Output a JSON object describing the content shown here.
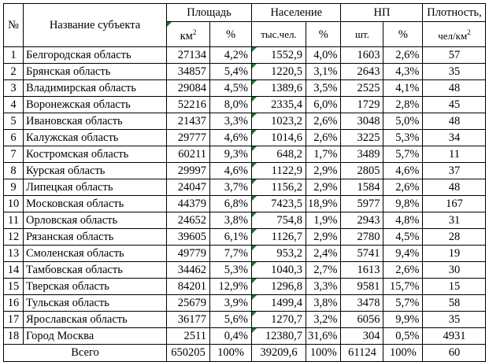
{
  "header": {
    "num": "№",
    "name": "Название субъекта",
    "area": "Площадь",
    "population": "Население",
    "np": "НП",
    "density": "Плотность,",
    "area_unit": "км",
    "area_unit_sup": "2",
    "pct": "%",
    "pop_unit": "тыс.чел.",
    "np_unit": "шт.",
    "density_unit": "чел/км",
    "density_unit_sup": "2"
  },
  "rows": [
    {
      "n": "1",
      "name": "Белгородская область",
      "area": "27134",
      "area_pct": "4,2%",
      "pop": "1552,9",
      "pop_pct": "4,0%",
      "np": "1603",
      "np_pct": "2,6%",
      "dens": "57"
    },
    {
      "n": "2",
      "name": "Брянская область",
      "area": "34857",
      "area_pct": "5,4%",
      "pop": "1220,5",
      "pop_pct": "3,1%",
      "np": "2643",
      "np_pct": "4,3%",
      "dens": "35"
    },
    {
      "n": "3",
      "name": "Владимирская область",
      "area": "29084",
      "area_pct": "4,5%",
      "pop": "1389,6",
      "pop_pct": "3,5%",
      "np": "2525",
      "np_pct": "4,1%",
      "dens": "48"
    },
    {
      "n": "4",
      "name": "Воронежская область",
      "area": "52216",
      "area_pct": "8,0%",
      "pop": "2335,4",
      "pop_pct": "6,0%",
      "np": "1729",
      "np_pct": "2,8%",
      "dens": "45"
    },
    {
      "n": "5",
      "name": "Ивановская область",
      "area": "21437",
      "area_pct": "3,3%",
      "pop": "1023,2",
      "pop_pct": "2,6%",
      "np": "3048",
      "np_pct": "5,0%",
      "dens": "48"
    },
    {
      "n": "6",
      "name": "Калужская область",
      "area": "29777",
      "area_pct": "4,6%",
      "pop": "1014,6",
      "pop_pct": "2,6%",
      "np": "3225",
      "np_pct": "5,3%",
      "dens": "34"
    },
    {
      "n": "7",
      "name": "Костромская область",
      "area": "60211",
      "area_pct": "9,3%",
      "pop": "648,2",
      "pop_pct": "1,7%",
      "np": "3489",
      "np_pct": "5,7%",
      "dens": "11"
    },
    {
      "n": "8",
      "name": "Курская область",
      "area": "29997",
      "area_pct": "4,6%",
      "pop": "1122,9",
      "pop_pct": "2,9%",
      "np": "2805",
      "np_pct": "4,6%",
      "dens": "37"
    },
    {
      "n": "9",
      "name": "Липецкая область",
      "area": "24047",
      "area_pct": "3,7%",
      "pop": "1156,2",
      "pop_pct": "2,9%",
      "np": "1584",
      "np_pct": "2,6%",
      "dens": "48"
    },
    {
      "n": "10",
      "name": "Московская область",
      "area": "44379",
      "area_pct": "6,8%",
      "pop": "7423,5",
      "pop_pct": "18,9%",
      "np": "5977",
      "np_pct": "9,8%",
      "dens": "167"
    },
    {
      "n": "11",
      "name": "Орловская область",
      "area": "24652",
      "area_pct": "3,8%",
      "pop": "754,8",
      "pop_pct": "1,9%",
      "np": "2943",
      "np_pct": "4,8%",
      "dens": "31"
    },
    {
      "n": "12",
      "name": "Рязанская область",
      "area": "39605",
      "area_pct": "6,1%",
      "pop": "1126,7",
      "pop_pct": "2,9%",
      "np": "2780",
      "np_pct": "4,5%",
      "dens": "28"
    },
    {
      "n": "13",
      "name": "Смоленская область",
      "area": "49779",
      "area_pct": "7,7%",
      "pop": "953,2",
      "pop_pct": "2,4%",
      "np": "5741",
      "np_pct": "9,4%",
      "dens": "19"
    },
    {
      "n": "14",
      "name": "Тамбовская область",
      "area": "34462",
      "area_pct": "5,3%",
      "pop": "1040,3",
      "pop_pct": "2,7%",
      "np": "1613",
      "np_pct": "2,6%",
      "dens": "30"
    },
    {
      "n": "15",
      "name": "Тверская область",
      "area": "84201",
      "area_pct": "12,9%",
      "pop": "1296,8",
      "pop_pct": "3,3%",
      "np": "9581",
      "np_pct": "15,7%",
      "dens": "15"
    },
    {
      "n": "16",
      "name": "Тульская область",
      "area": "25679",
      "area_pct": "3,9%",
      "pop": "1499,4",
      "pop_pct": "3,8%",
      "np": "3478",
      "np_pct": "5,7%",
      "dens": "58"
    },
    {
      "n": "17",
      "name": "Ярославская область",
      "area": "36177",
      "area_pct": "5,6%",
      "pop": "1270,7",
      "pop_pct": "3,2%",
      "np": "6056",
      "np_pct": "9,9%",
      "dens": "35"
    },
    {
      "n": "18",
      "name": "Город Москва",
      "area": "2511",
      "area_pct": "0,4%",
      "pop": "12380,7",
      "pop_pct": "31,6%",
      "np": "304",
      "np_pct": "0,5%",
      "dens": "4931"
    }
  ],
  "total": {
    "label": "Всего",
    "area": "650205",
    "area_pct": "100%",
    "pop": "39209,6",
    "pop_pct": "100%",
    "np": "61124",
    "np_pct": "100%",
    "dens": "60"
  },
  "marker_color": "#1f7a2e"
}
